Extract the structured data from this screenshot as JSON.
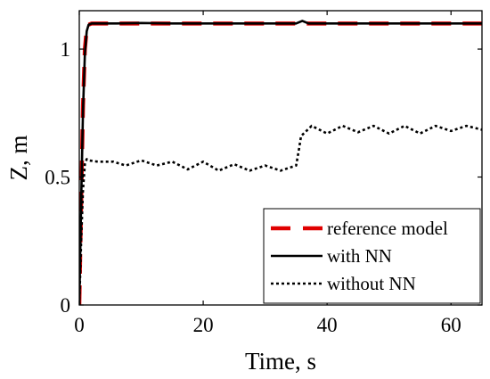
{
  "chart_data": {
    "type": "line",
    "title": "",
    "xlabel": "Time, s",
    "ylabel": "Z, m",
    "xlim": [
      0,
      65
    ],
    "ylim": [
      0,
      1.15
    ],
    "xticks": [
      0,
      20,
      40,
      60
    ],
    "xtick_labels": [
      "0",
      "20",
      "40",
      "60"
    ],
    "yticks": [
      0,
      0.5,
      1
    ],
    "ytick_labels": [
      "0",
      "0.5",
      "1"
    ],
    "grid": false,
    "legend": {
      "placement": "bottom-right"
    },
    "series": [
      {
        "name": "reference model",
        "color": "#e00000",
        "style": "dashed",
        "x": [
          0,
          0.3,
          0.6,
          0.9,
          1.2,
          1.5,
          2,
          3,
          65
        ],
        "y": [
          0,
          0.4,
          0.78,
          1.0,
          1.08,
          1.095,
          1.1,
          1.1,
          1.1
        ]
      },
      {
        "name": "with NN",
        "color": "#000000",
        "style": "solid",
        "x": [
          0,
          0.3,
          0.6,
          0.9,
          1.2,
          1.5,
          2,
          3,
          6,
          10,
          15,
          20,
          25,
          30,
          35,
          36,
          37,
          40,
          45,
          50,
          55,
          60,
          65
        ],
        "y": [
          0,
          0.4,
          0.76,
          0.98,
          1.07,
          1.095,
          1.1,
          1.1,
          1.1,
          1.102,
          1.1,
          1.1,
          1.1,
          1.1,
          1.1,
          1.11,
          1.1,
          1.1,
          1.1,
          1.1,
          1.1,
          1.1,
          1.1
        ]
      },
      {
        "name": "without NN",
        "color": "#000000",
        "style": "dotted",
        "x": [
          0,
          0.3,
          0.6,
          0.9,
          1.2,
          1.5,
          3,
          5.5,
          7.5,
          10,
          12.5,
          15,
          17.5,
          20,
          22.5,
          25,
          27.5,
          30,
          32.5,
          35,
          35.4,
          35.8,
          37.5,
          40,
          42.5,
          45,
          47.5,
          50,
          52.5,
          55,
          57.5,
          60,
          62.5,
          65
        ],
        "y": [
          0,
          0.25,
          0.45,
          0.55,
          0.57,
          0.565,
          0.56,
          0.56,
          0.545,
          0.565,
          0.545,
          0.56,
          0.53,
          0.56,
          0.525,
          0.55,
          0.525,
          0.545,
          0.525,
          0.545,
          0.6,
          0.66,
          0.7,
          0.67,
          0.7,
          0.675,
          0.7,
          0.67,
          0.7,
          0.67,
          0.7,
          0.68,
          0.7,
          0.685
        ]
      }
    ]
  }
}
